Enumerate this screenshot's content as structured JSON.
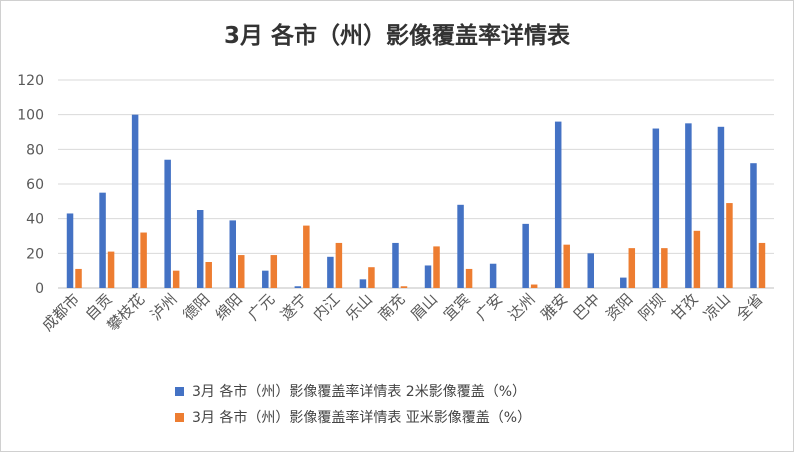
{
  "chart_data": {
    "type": "bar",
    "title": "3月 各市（州）影像覆盖率详情表",
    "categories": [
      "成都市",
      "自贡",
      "攀枝花",
      "泸州",
      "德阳",
      "绵阳",
      "广元",
      "遂宁",
      "内江",
      "乐山",
      "南充",
      "眉山",
      "宜宾",
      "广安",
      "达州",
      "雅安",
      "巴中",
      "资阳",
      "阿坝",
      "甘孜",
      "凉山",
      "全省"
    ],
    "series": [
      {
        "name": "3月 各市（州）影像覆盖率详情表 2米影像覆盖（%）",
        "color": "#4472c4",
        "values": [
          43,
          55,
          100,
          74,
          45,
          39,
          10,
          1,
          18,
          5,
          26,
          13,
          48,
          14,
          37,
          96,
          20,
          6,
          92,
          95,
          93,
          72
        ]
      },
      {
        "name": "3月 各市（州）影像覆盖率详情表 亚米影像覆盖（%）",
        "color": "#ed7d31",
        "values": [
          11,
          21,
          32,
          10,
          15,
          19,
          19,
          36,
          26,
          12,
          1,
          24,
          11,
          0,
          2,
          25,
          0,
          23,
          23,
          33,
          49,
          26
        ]
      }
    ],
    "yticks": [
      "0",
      "20",
      "40",
      "60",
      "80",
      "100",
      "120"
    ],
    "ylim": [
      0,
      120
    ],
    "grid": true,
    "legend": "bottom"
  }
}
